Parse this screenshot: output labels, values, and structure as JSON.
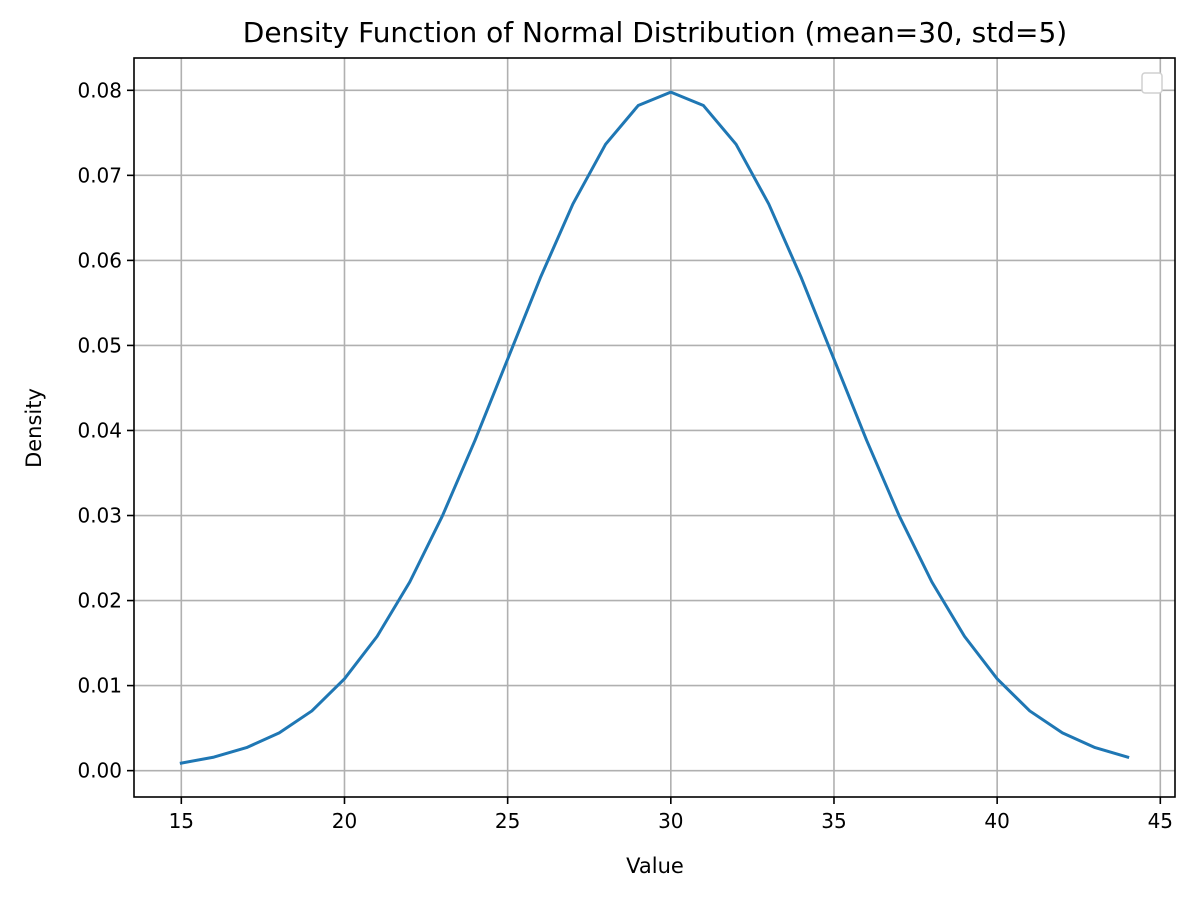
{
  "chart_data": {
    "type": "line",
    "title": "Density Function of Normal Distribution (mean=30, std=5)",
    "xlabel": "Value",
    "ylabel": "Density",
    "xlim": [
      13.55,
      45.45
    ],
    "ylim": [
      -0.0031,
      0.0838
    ],
    "x_ticks": [
      15,
      20,
      25,
      30,
      35,
      40,
      45
    ],
    "y_ticks": [
      0.0,
      0.01,
      0.02,
      0.03,
      0.04,
      0.05,
      0.06,
      0.07,
      0.08
    ],
    "x_tick_labels": [
      "15",
      "20",
      "25",
      "30",
      "35",
      "40",
      "45"
    ],
    "y_tick_labels": [
      "0.00",
      "0.01",
      "0.02",
      "0.03",
      "0.04",
      "0.05",
      "0.06",
      "0.07",
      "0.08"
    ],
    "grid": true,
    "legend": "top-right",
    "series": [
      {
        "color": "#1f77b4",
        "x": [
          15,
          16,
          17,
          18,
          19,
          20,
          21,
          22,
          23,
          24,
          25,
          26,
          27,
          28,
          29,
          30,
          31,
          32,
          33,
          34,
          35,
          36,
          37,
          38,
          39,
          40,
          41,
          42,
          43,
          44
        ],
        "y": [
          0.00089,
          0.00159,
          0.00271,
          0.00444,
          0.00702,
          0.0108,
          0.01579,
          0.02218,
          0.02995,
          0.03884,
          0.04839,
          0.05794,
          0.06664,
          0.07365,
          0.07821,
          0.07979,
          0.07821,
          0.07365,
          0.06664,
          0.05794,
          0.04839,
          0.03884,
          0.02995,
          0.02218,
          0.01579,
          0.0108,
          0.00702,
          0.00444,
          0.00271,
          0.00159
        ]
      }
    ]
  }
}
